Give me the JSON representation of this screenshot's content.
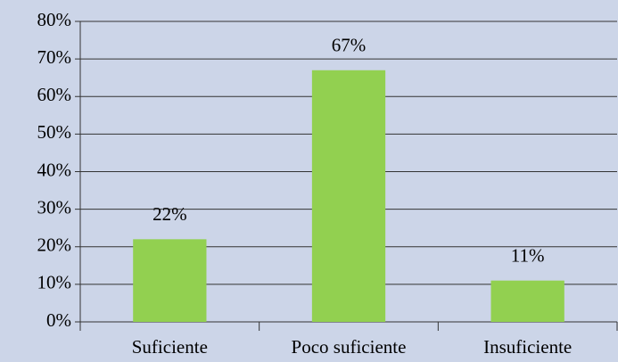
{
  "chart_data": {
    "type": "bar",
    "categories": [
      "Suficiente",
      "Poco suficiente",
      "Insuficiente"
    ],
    "values": [
      22,
      67,
      11
    ],
    "value_labels": [
      "22%",
      "67%",
      "11%"
    ],
    "color": "#92d050",
    "ylim": [
      0,
      80
    ],
    "yticks": [
      {
        "value": 0,
        "label": "0%"
      },
      {
        "value": 10,
        "label": "10%"
      },
      {
        "value": 20,
        "label": "20%"
      },
      {
        "value": 30,
        "label": "30%"
      },
      {
        "value": 40,
        "label": "40%"
      },
      {
        "value": 50,
        "label": "50%"
      },
      {
        "value": 60,
        "label": "60%"
      },
      {
        "value": 70,
        "label": "70%"
      },
      {
        "value": 80,
        "label": "80%"
      }
    ],
    "grid": true
  }
}
